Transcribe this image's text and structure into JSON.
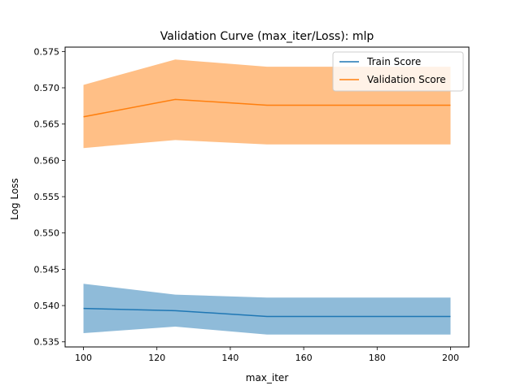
{
  "chart_data": {
    "type": "line",
    "title": "Validation Curve (max_iter/Loss): mlp",
    "xlabel": "max_iter",
    "ylabel": "Log Loss",
    "xlim": [
      95,
      205
    ],
    "ylim": [
      0.5343,
      0.5756
    ],
    "x_ticks": [
      100,
      120,
      140,
      160,
      180,
      200
    ],
    "y_ticks": [
      0.535,
      0.54,
      0.545,
      0.55,
      0.555,
      0.56,
      0.565,
      0.57,
      0.575
    ],
    "x_tick_labels": [
      "100",
      "120",
      "140",
      "160",
      "180",
      "200"
    ],
    "y_tick_labels": [
      "0.535",
      "0.540",
      "0.545",
      "0.550",
      "0.555",
      "0.560",
      "0.565",
      "0.570",
      "0.575"
    ],
    "grid": false,
    "legend_position": "top-right",
    "x": [
      100,
      125,
      150,
      200
    ],
    "series": [
      {
        "name": "Train Score",
        "color": "#1f77b4",
        "band_color": "#1f77b4",
        "values": [
          0.5396,
          0.5393,
          0.5385,
          0.5385
        ],
        "lower": [
          0.5362,
          0.5371,
          0.536,
          0.536
        ],
        "upper": [
          0.543,
          0.5415,
          0.5411,
          0.5411
        ]
      },
      {
        "name": "Validation Score",
        "color": "#ff7f0e",
        "band_color": "#ff7f0e",
        "values": [
          0.566,
          0.5684,
          0.5676,
          0.5676
        ],
        "lower": [
          0.5617,
          0.5628,
          0.5622,
          0.5622
        ],
        "upper": [
          0.5704,
          0.5739,
          0.5729,
          0.5729
        ]
      }
    ]
  }
}
